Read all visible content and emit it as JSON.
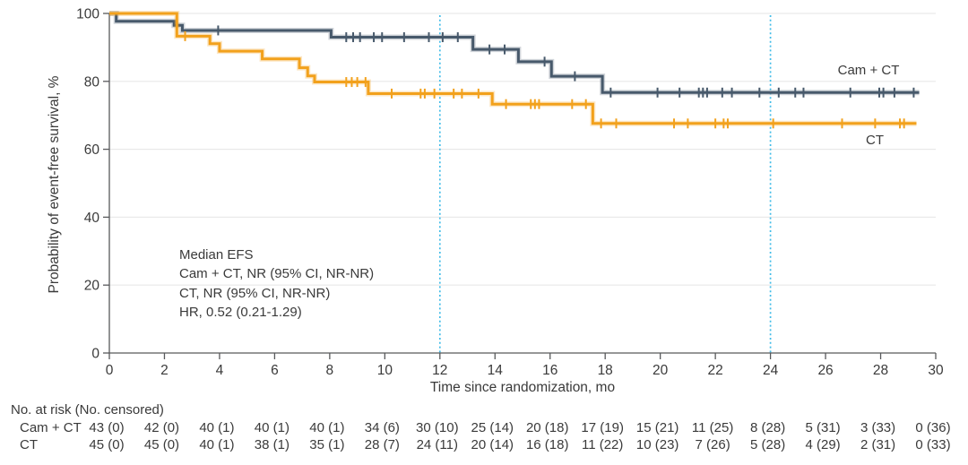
{
  "figure": {
    "ylabel": "Probability of event-free survival, %",
    "xlabel": "Time since randomization, mo",
    "annotation_lines": [
      "Median EFS",
      "Cam + CT, NR (95% CI, NR-NR)",
      "CT, NR (95% CI, NR-NR)",
      "HR, 0.52 (0.21-1.29)"
    ],
    "series_labels": {
      "cam_ct": "Cam + CT",
      "ct": "CT"
    }
  },
  "chart_data": {
    "type": "line",
    "subtype": "kaplan-meier-step",
    "xlabel": "Time since randomization, mo",
    "ylabel": "Probability of event-free survival, %",
    "xlim": [
      0,
      30
    ],
    "ylim": [
      0,
      100
    ],
    "xticks": [
      0,
      2,
      4,
      6,
      8,
      10,
      12,
      14,
      16,
      18,
      20,
      22,
      24,
      26,
      28,
      30
    ],
    "yticks": [
      0,
      20,
      40,
      60,
      80,
      100
    ],
    "grid": "horizontal-at-yticks",
    "reference_lines_x": [
      12,
      24
    ],
    "series": [
      {
        "name": "Cam + CT",
        "color": "#47596B",
        "end_x": 29.4,
        "steps": [
          [
            0,
            100
          ],
          [
            0.25,
            97.7
          ],
          [
            2.35,
            96.5
          ],
          [
            2.65,
            95.0
          ],
          [
            8.05,
            93.0
          ],
          [
            13.2,
            89.4
          ],
          [
            14.85,
            85.8
          ],
          [
            16.05,
            81.5
          ],
          [
            17.9,
            76.7
          ]
        ],
        "censors": [
          [
            3.95,
            95.0
          ],
          [
            8.6,
            93.0
          ],
          [
            8.85,
            93.0
          ],
          [
            9.1,
            93.0
          ],
          [
            9.6,
            93.0
          ],
          [
            9.9,
            93.0
          ],
          [
            10.7,
            93.0
          ],
          [
            11.6,
            93.0
          ],
          [
            12.1,
            93.0
          ],
          [
            12.65,
            93.0
          ],
          [
            13.8,
            89.4
          ],
          [
            14.35,
            89.4
          ],
          [
            15.8,
            85.8
          ],
          [
            16.9,
            81.5
          ],
          [
            18.2,
            76.7
          ],
          [
            19.9,
            76.7
          ],
          [
            20.7,
            76.7
          ],
          [
            21.4,
            76.7
          ],
          [
            21.55,
            76.7
          ],
          [
            21.7,
            76.7
          ],
          [
            22.25,
            76.7
          ],
          [
            22.6,
            76.7
          ],
          [
            23.6,
            76.7
          ],
          [
            24.3,
            76.7
          ],
          [
            24.9,
            76.7
          ],
          [
            25.2,
            76.7
          ],
          [
            26.9,
            76.7
          ],
          [
            27.95,
            76.7
          ],
          [
            28.1,
            76.7
          ],
          [
            28.5,
            76.7
          ],
          [
            29.2,
            76.7
          ]
        ]
      },
      {
        "name": "CT",
        "color": "#F2A11C",
        "end_x": 29.3,
        "steps": [
          [
            0,
            100
          ],
          [
            2.45,
            93.3
          ],
          [
            3.65,
            91.1
          ],
          [
            4.0,
            88.9
          ],
          [
            5.55,
            86.6
          ],
          [
            6.9,
            84.0
          ],
          [
            7.2,
            81.6
          ],
          [
            7.45,
            79.8
          ],
          [
            9.4,
            76.4
          ],
          [
            13.9,
            73.3
          ],
          [
            17.55,
            67.6
          ]
        ],
        "censors": [
          [
            2.75,
            93.3
          ],
          [
            8.6,
            79.8
          ],
          [
            8.8,
            79.8
          ],
          [
            9.0,
            79.8
          ],
          [
            9.3,
            79.8
          ],
          [
            10.25,
            76.4
          ],
          [
            11.3,
            76.4
          ],
          [
            11.45,
            76.4
          ],
          [
            11.8,
            76.4
          ],
          [
            12.5,
            76.4
          ],
          [
            12.8,
            76.4
          ],
          [
            13.4,
            76.4
          ],
          [
            14.4,
            73.3
          ],
          [
            15.3,
            73.3
          ],
          [
            15.45,
            73.3
          ],
          [
            15.6,
            73.3
          ],
          [
            16.8,
            73.3
          ],
          [
            17.3,
            73.3
          ],
          [
            17.85,
            67.6
          ],
          [
            18.4,
            67.6
          ],
          [
            20.5,
            67.6
          ],
          [
            21.0,
            67.6
          ],
          [
            22.0,
            67.6
          ],
          [
            22.3,
            67.6
          ],
          [
            22.45,
            67.6
          ],
          [
            24.1,
            67.6
          ],
          [
            26.6,
            67.6
          ],
          [
            27.8,
            67.6
          ],
          [
            28.7,
            67.6
          ],
          [
            28.85,
            67.6
          ]
        ]
      }
    ],
    "annotation": {
      "median_efs_title": "Median EFS",
      "cam_ct_median": "NR (95% CI, NR-NR)",
      "ct_median": "NR (95% CI, NR-NR)",
      "hazard_ratio": "0.52 (0.21-1.29)"
    }
  },
  "risk_table": {
    "header": "No. at risk (No. censored)",
    "months": [
      0,
      2,
      4,
      6,
      8,
      10,
      12,
      14,
      16,
      18,
      20,
      22,
      24,
      26,
      28,
      30
    ],
    "rows": [
      {
        "label": "Cam + CT",
        "values": [
          "43 (0)",
          "42 (0)",
          "40 (1)",
          "40 (1)",
          "40 (1)",
          "34 (6)",
          "30 (10)",
          "25 (14)",
          "20 (18)",
          "17 (19)",
          "15 (21)",
          "11 (25)",
          "8 (28)",
          "5 (31)",
          "3 (33)",
          "0 (36)"
        ]
      },
      {
        "label": "CT",
        "values": [
          "45 (0)",
          "45 (0)",
          "40 (1)",
          "38 (1)",
          "35 (1)",
          "28 (7)",
          "24 (11)",
          "20 (14)",
          "16 (18)",
          "11 (22)",
          "10 (23)",
          "7 (26)",
          "5 (28)",
          "4 (29)",
          "2 (31)",
          "0 (33)"
        ]
      }
    ]
  },
  "colors": {
    "cam_ct_line": "#47596B",
    "ct_line": "#F2A11C",
    "reference_dotted": "#41BCE8",
    "gridline": "#e9e9e9",
    "axis": "#58595b",
    "text": "#3a3a3a"
  }
}
